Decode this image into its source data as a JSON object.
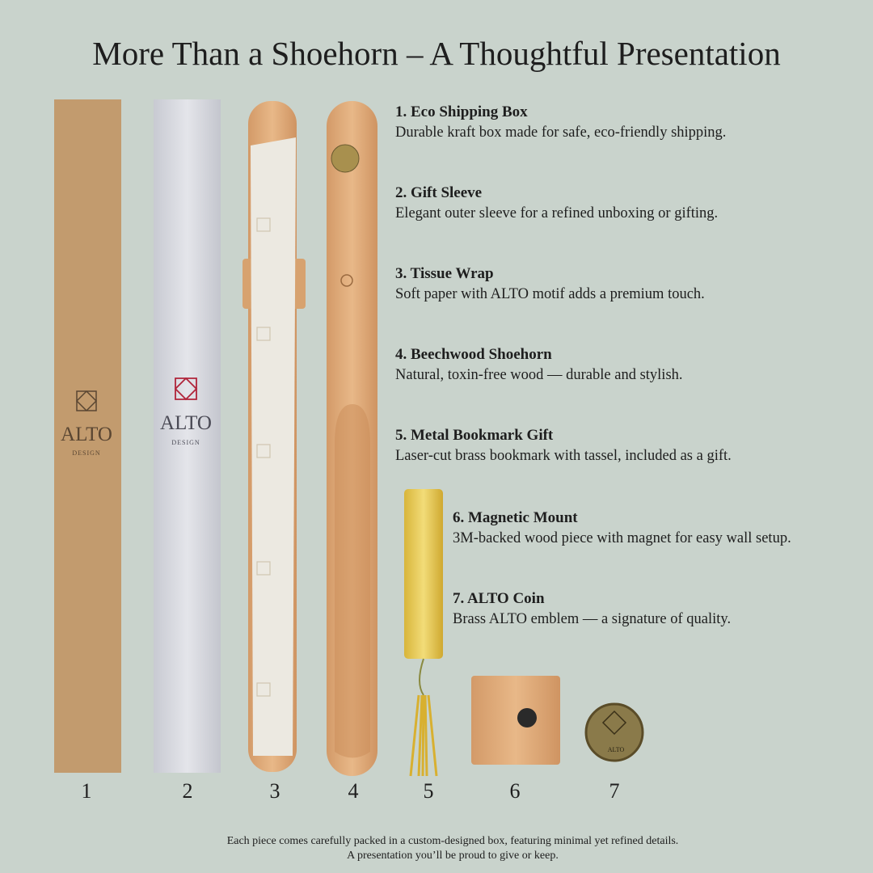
{
  "title": "More Than a Shoehorn – A Thoughtful Presentation",
  "products": [
    {
      "number": "1",
      "title": "1. Eco Shipping Box",
      "description": "Durable kraft box made for safe, eco-friendly shipping."
    },
    {
      "number": "2",
      "title": "2. Gift Sleeve",
      "description": "Elegant outer sleeve for a refined unboxing or gifting."
    },
    {
      "number": "3",
      "title": "3. Tissue Wrap",
      "description": "Soft paper with ALTO motif adds a premium touch."
    },
    {
      "number": "4",
      "title": "4. Beechwood Shoehorn",
      "description": "Natural, toxin-free wood — durable and stylish."
    },
    {
      "number": "5",
      "title": "5. Metal Bookmark Gift",
      "description": "Laser-cut brass bookmark with tassel, included as a gift."
    },
    {
      "number": "6",
      "title": "6. Magnetic Mount",
      "description": "3M-backed wood piece with magnet for easy wall setup."
    },
    {
      "number": "7",
      "title": "7. ALTO Coin",
      "description": "Brass ALTO emblem — a signature of quality."
    }
  ],
  "packaging_print": {
    "box_brand": "ALTO",
    "box_subtitle": "DESIGN",
    "sleeve_brand": "ALTO",
    "sleeve_subtitle": "DESIGN",
    "coin_text": "ALTO"
  },
  "footer": {
    "line1": "Each piece comes carefully packed in a custom-designed box, featuring minimal yet refined details.",
    "line2": "A presentation you’ll be proud to give or keep."
  }
}
